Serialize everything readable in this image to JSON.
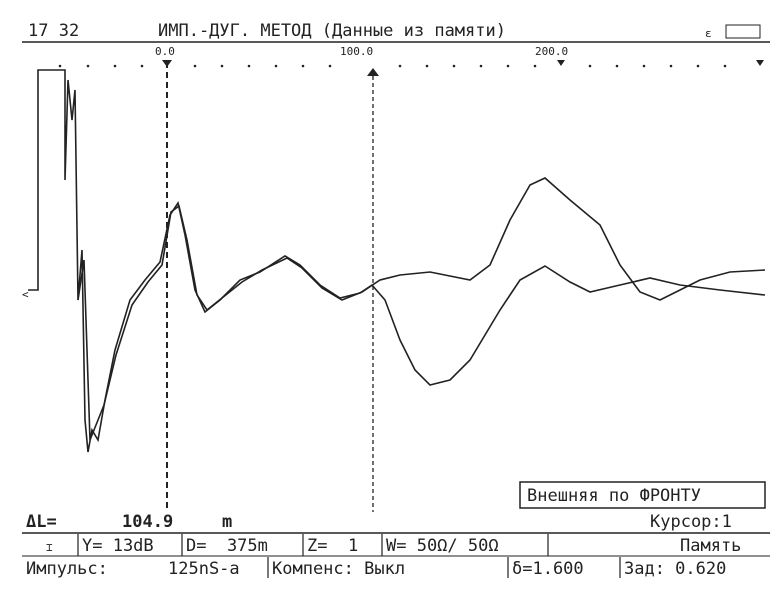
{
  "header": {
    "time": "17 32",
    "title": "ИМП.-ДУГ. МЕТОД (Данные из памяти)"
  },
  "scale": {
    "labels": [
      "0.0",
      "100.0",
      "200.0"
    ]
  },
  "overlay": {
    "mode": "Внешняя по ФРОНТУ"
  },
  "measure": {
    "label": "ΔL=",
    "value": "104.9",
    "unit": "m",
    "cursor": "Курсор:1"
  },
  "status": {
    "row1": [
      "Y= 13dB",
      "D=  375m",
      "Z=  1",
      "W= 50Ω/ 50Ω",
      "Память"
    ],
    "row2": [
      "Импульс:",
      "125nS-a",
      "Компенс: Выкл",
      "δ=1.600",
      "Зад: 0.620"
    ]
  }
}
